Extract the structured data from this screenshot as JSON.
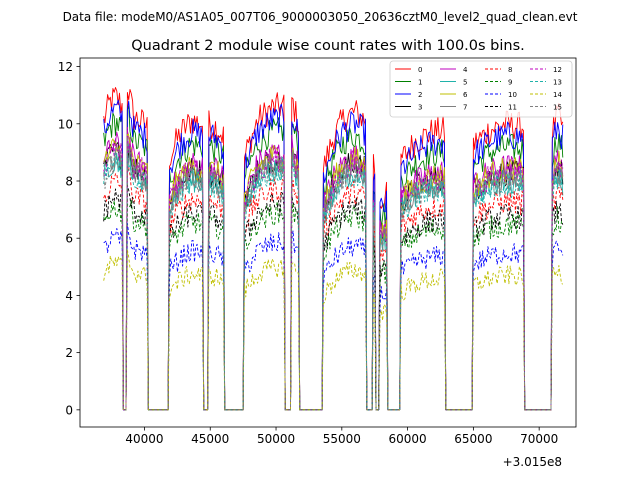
{
  "chart_data": {
    "type": "line",
    "suptitle": "Data file: modeM0/AS1A05_007T06_9000003050_20636cztM0_level2_quad_clean.evt",
    "title": "Quadrant 2 module wise count rates with 100.0s bins.",
    "xlabel": "",
    "ylabel": "",
    "x_offset_label": "+3.015e8",
    "xlim": [
      35100,
      72800
    ],
    "ylim": [
      -0.6,
      12.3
    ],
    "x_ticks": [
      40000,
      45000,
      50000,
      55000,
      60000,
      65000,
      70000
    ],
    "x_tick_labels": [
      "40000",
      "45000",
      "50000",
      "55000",
      "60000",
      "65000",
      "70000"
    ],
    "y_ticks": [
      0,
      2,
      4,
      6,
      8,
      10,
      12
    ],
    "y_tick_labels": [
      "0",
      "2",
      "4",
      "6",
      "8",
      "10",
      "12"
    ],
    "legend_position": "top-right",
    "gti_segments": [
      [
        36900,
        38300,
        [
          9.6,
          10.2,
          10.4,
          10.1
        ]
      ],
      [
        38700,
        40200,
        [
          10.8,
          9.7,
          9.6,
          9.4
        ]
      ],
      [
        41900,
        44400,
        [
          8.4,
          9.2,
          9.6,
          9.5
        ]
      ],
      [
        44900,
        46000,
        [
          9.5,
          9.4,
          9.1
        ]
      ],
      [
        47600,
        50600,
        [
          8.4,
          9.6,
          10.0,
          10.1
        ]
      ],
      [
        51200,
        51700,
        [
          10.3,
          9.5
        ]
      ],
      [
        53600,
        56800,
        [
          8.0,
          9.1,
          9.7,
          9.9,
          9.6
        ]
      ],
      [
        57400,
        57500,
        [
          8.3,
          8.0
        ]
      ],
      [
        57900,
        58400,
        [
          6.9,
          7.1
        ]
      ],
      [
        59500,
        62800,
        [
          8.3,
          8.9,
          9.2,
          9.3
        ]
      ],
      [
        65000,
        68800,
        [
          8.8,
          9.3,
          9.5,
          9.4
        ]
      ],
      [
        71000,
        71800,
        [
          9.2,
          9.8,
          9.4
        ]
      ]
    ],
    "series": [
      {
        "name": "0",
        "color": "#ff0000",
        "dash": "solid",
        "level": 10.0
      },
      {
        "name": "1",
        "color": "#008000",
        "dash": "solid",
        "level": 9.2
      },
      {
        "name": "2",
        "color": "#0000ff",
        "dash": "solid",
        "level": 9.6
      },
      {
        "name": "3",
        "color": "#000000",
        "dash": "solid",
        "level": 8.3
      },
      {
        "name": "4",
        "color": "#bf00bf",
        "dash": "solid",
        "level": 8.5
      },
      {
        "name": "5",
        "color": "#20b2aa",
        "dash": "solid",
        "level": 8.0
      },
      {
        "name": "6",
        "color": "#bfbf00",
        "dash": "solid",
        "level": 8.4
      },
      {
        "name": "7",
        "color": "#7f7f7f",
        "dash": "solid",
        "level": 8.1
      },
      {
        "name": "8",
        "color": "#ff0000",
        "dash": "dashed",
        "level": 7.3
      },
      {
        "name": "9",
        "color": "#008000",
        "dash": "dashed",
        "level": 6.5
      },
      {
        "name": "10",
        "color": "#0000ff",
        "dash": "dashed",
        "level": 5.5
      },
      {
        "name": "11",
        "color": "#000000",
        "dash": "dashed",
        "level": 6.8
      },
      {
        "name": "12",
        "color": "#bf00bf",
        "dash": "dashed",
        "level": 8.3
      },
      {
        "name": "13",
        "color": "#20b2aa",
        "dash": "dashed",
        "level": 7.9
      },
      {
        "name": "14",
        "color": "#bfbf00",
        "dash": "dashed",
        "level": 4.7
      },
      {
        "name": "15",
        "color": "#7f7f7f",
        "dash": "dashed",
        "level": 8.0
      }
    ]
  }
}
